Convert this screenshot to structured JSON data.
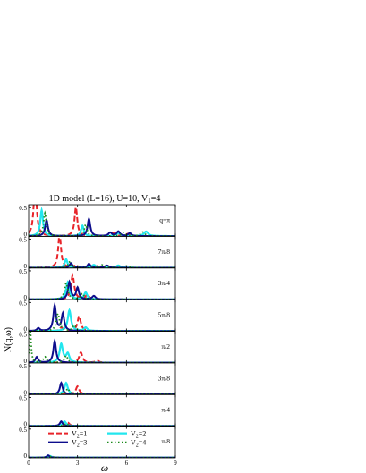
{
  "chart_data": {
    "type": "line",
    "title": "1D model (L=16), U=10, V",
    "title_sub": "1",
    "title_tail": "=4",
    "xlabel": "ω",
    "ylabel": "N(q,ω)",
    "xlim": [
      0,
      9
    ],
    "xticks": [
      "0",
      "3",
      "6",
      "9"
    ],
    "ylim": [
      0,
      0.55
    ],
    "yticks": [
      "0",
      "0.5"
    ],
    "panels": [
      {
        "label": "q=π",
        "peaks": {
          "V2=1": [
            [
              0.4,
              1.0,
              0.1
            ],
            [
              2.9,
              0.5,
              0.1
            ],
            [
              5.2,
              0.06,
              0.15
            ],
            [
              6.1,
              0.04,
              0.15
            ]
          ],
          "V2=2": [
            [
              0.8,
              0.45,
              0.1
            ],
            [
              3.3,
              0.18,
              0.1
            ],
            [
              5.5,
              0.05,
              0.15
            ],
            [
              7.2,
              0.08,
              0.15
            ]
          ],
          "V2=3": [
            [
              1.1,
              0.28,
              0.1
            ],
            [
              3.7,
              0.3,
              0.1
            ],
            [
              5.0,
              0.06,
              0.12
            ],
            [
              5.5,
              0.08,
              0.12
            ],
            [
              6.2,
              0.05,
              0.12
            ]
          ],
          "V2=4": [
            [
              1.0,
              0.4,
              0.1
            ],
            [
              3.5,
              0.2,
              0.1
            ],
            [
              5.8,
              0.06,
              0.15
            ],
            [
              7.0,
              0.07,
              0.15
            ]
          ]
        }
      },
      {
        "label": "7π/8",
        "peaks": {
          "V2=1": [
            [
              1.9,
              0.6,
              0.1
            ],
            [
              2.9,
              0.05,
              0.1
            ],
            [
              4.3,
              0.04,
              0.15
            ]
          ],
          "V2=2": [
            [
              2.3,
              0.15,
              0.1
            ],
            [
              4.0,
              0.05,
              0.15
            ],
            [
              5.5,
              0.04,
              0.15
            ]
          ],
          "V2=3": [
            [
              2.6,
              0.08,
              0.1
            ],
            [
              3.7,
              0.07,
              0.1
            ],
            [
              4.8,
              0.04,
              0.15
            ]
          ],
          "V2=4": [
            [
              2.5,
              0.1,
              0.1
            ],
            [
              4.5,
              0.05,
              0.15
            ],
            [
              6.0,
              0.03,
              0.15
            ]
          ]
        }
      },
      {
        "label": "3π/4",
        "peaks": {
          "V2=1": [
            [
              2.7,
              0.42,
              0.12
            ],
            [
              3.6,
              0.08,
              0.12
            ]
          ],
          "V2=2": [
            [
              2.4,
              0.3,
              0.12
            ],
            [
              3.5,
              0.12,
              0.12
            ]
          ],
          "V2=3": [
            [
              2.5,
              0.3,
              0.1
            ],
            [
              3.0,
              0.2,
              0.1
            ],
            [
              4.0,
              0.06,
              0.12
            ]
          ],
          "V2=4": [
            [
              2.3,
              0.28,
              0.12
            ],
            [
              3.3,
              0.1,
              0.12
            ]
          ]
        }
      },
      {
        "label": "5π/8",
        "peaks": {
          "V2=1": [
            [
              3.1,
              0.26,
              0.12
            ],
            [
              2.0,
              0.06,
              0.12
            ]
          ],
          "V2=2": [
            [
              2.5,
              0.36,
              0.12
            ],
            [
              3.5,
              0.06,
              0.12
            ]
          ],
          "V2=3": [
            [
              0.6,
              0.05,
              0.1
            ],
            [
              1.6,
              0.44,
              0.1
            ],
            [
              2.1,
              0.3,
              0.1
            ]
          ],
          "V2=4": [
            [
              1.8,
              0.3,
              0.12
            ],
            [
              2.8,
              0.1,
              0.12
            ]
          ]
        }
      },
      {
        "label": "π/2",
        "peaks": {
          "V2=1": [
            [
              3.2,
              0.18,
              0.12
            ],
            [
              4.2,
              0.04,
              0.12
            ]
          ],
          "V2=2": [
            [
              2.0,
              0.32,
              0.12
            ],
            [
              2.4,
              0.15,
              0.12
            ]
          ],
          "V2=3": [
            [
              0.5,
              0.1,
              0.1
            ],
            [
              1.6,
              0.38,
              0.1
            ]
          ],
          "V2=4": [
            [
              0.1,
              0.6,
              0.06
            ],
            [
              1.0,
              0.1,
              0.12
            ],
            [
              2.3,
              0.12,
              0.12
            ]
          ]
        }
      },
      {
        "label": "3π/8",
        "peaks": {
          "V2=1": [
            [
              3.0,
              0.14,
              0.12
            ]
          ],
          "V2=2": [
            [
              2.3,
              0.2,
              0.12
            ]
          ],
          "V2=3": [
            [
              2.0,
              0.2,
              0.1
            ]
          ],
          "V2=4": [
            [
              2.4,
              0.1,
              0.12
            ]
          ]
        }
      },
      {
        "label": "π/4",
        "peaks": {
          "V2=1": [
            [
              2.4,
              0.06,
              0.12
            ]
          ],
          "V2=2": [
            [
              2.2,
              0.08,
              0.12
            ]
          ],
          "V2=3": [
            [
              2.0,
              0.08,
              0.1
            ]
          ],
          "V2=4": [
            [
              2.3,
              0.04,
              0.12
            ]
          ]
        }
      },
      {
        "label": "π/8",
        "peaks": {
          "V2=1": [
            [
              1.4,
              0.02,
              0.12
            ]
          ],
          "V2=2": [
            [
              1.3,
              0.03,
              0.12
            ]
          ],
          "V2=3": [
            [
              1.2,
              0.04,
              0.1
            ]
          ],
          "V2=4": [
            [
              1.3,
              0.02,
              0.12
            ]
          ]
        }
      }
    ],
    "series": [
      {
        "key": "V2=1",
        "name": "V",
        "name_sub": "2",
        "name_tail": "=1",
        "color": "#e8242a",
        "dash": "6,3",
        "width": 2.0
      },
      {
        "key": "V2=2",
        "name": "V",
        "name_sub": "2",
        "name_tail": "=2",
        "color": "#22e6ee",
        "dash": "",
        "width": 2.2
      },
      {
        "key": "V2=3",
        "name": "V",
        "name_sub": "2",
        "name_tail": "=3",
        "color": "#0d0d8c",
        "dash": "",
        "width": 2.0
      },
      {
        "key": "V2=4",
        "name": "V",
        "name_sub": "2",
        "name_tail": "=4",
        "color": "#1a8a1a",
        "dash": "1.5,2.5",
        "width": 1.8
      }
    ],
    "legend_placement": "inside bottom panel",
    "grid": false
  }
}
